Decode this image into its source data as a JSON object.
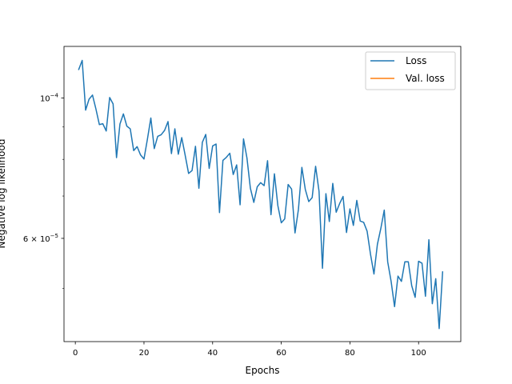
{
  "chart_data": {
    "type": "line",
    "xlabel": "Epochs",
    "ylabel": "Negative log likelihood",
    "yscale": "log",
    "xlim": [
      -3.3,
      112.3
    ],
    "ylim": [
      4.12e-05,
      0.0001207
    ],
    "grid": false,
    "legend_position": "top-right",
    "x_ticks": [
      0,
      20,
      40,
      60,
      80,
      100
    ],
    "x_tick_labels": [
      "0",
      "20",
      "40",
      "60",
      "80",
      "100"
    ],
    "y_ticks": [
      0.0001,
      6e-05
    ],
    "y_tick_labels": [
      {
        "mantissa": "",
        "base": "10",
        "exponent": "−4"
      },
      {
        "mantissa": "6 × ",
        "base": "10",
        "exponent": "−5"
      }
    ],
    "series": [
      {
        "name": "Loss",
        "color": "#1f77b4",
        "x": [
          1,
          2,
          3,
          4,
          5,
          6,
          7,
          8,
          9,
          10,
          11,
          12,
          13,
          14,
          15,
          16,
          17,
          18,
          19,
          20,
          21,
          22,
          23,
          24,
          25,
          26,
          27,
          28,
          29,
          30,
          31,
          32,
          33,
          34,
          35,
          36,
          37,
          38,
          39,
          40,
          41,
          42,
          43,
          44,
          45,
          46,
          47,
          48,
          49,
          50,
          51,
          52,
          53,
          54,
          55,
          56,
          57,
          58,
          59,
          60,
          61,
          62,
          63,
          64,
          65,
          66,
          67,
          68,
          69,
          70,
          71,
          72,
          73,
          74,
          75,
          76,
          77,
          78,
          79,
          80,
          81,
          82,
          83,
          84,
          85,
          86,
          87,
          88,
          89,
          90,
          91,
          92,
          93,
          94,
          95,
          96,
          97,
          98,
          99,
          100,
          101,
          102,
          103,
          104,
          105,
          106,
          107
        ],
        "y": [
          0.000111,
          0.0001147,
          9.57e-05,
          9.96e-05,
          0.0001011,
          9.61e-05,
          9.08e-05,
          9.11e-05,
          8.87e-05,
          0.0001002,
          9.79e-05,
          8.05e-05,
          9.1e-05,
          9.44e-05,
          9.03e-05,
          8.94e-05,
          8.26e-05,
          8.38e-05,
          8.13e-05,
          8.01e-05,
          8.61e-05,
          9.3e-05,
          8.32e-05,
          8.7e-05,
          8.75e-05,
          8.89e-05,
          9.18e-05,
          8.17e-05,
          8.94e-05,
          8.15e-05,
          8.66e-05,
          8.12e-05,
          7.6e-05,
          7.68e-05,
          8.39e-05,
          7.2e-05,
          8.51e-05,
          8.76e-05,
          7.74e-05,
          8.4e-05,
          8.46e-05,
          6.59e-05,
          7.97e-05,
          8.06e-05,
          8.18e-05,
          7.57e-05,
          7.84e-05,
          6.78e-05,
          8.62e-05,
          8.04e-05,
          7.2e-05,
          6.84e-05,
          7.24e-05,
          7.35e-05,
          7.27e-05,
          7.96e-05,
          6.54e-05,
          7.59e-05,
          6.76e-05,
          6.35e-05,
          6.44e-05,
          7.3e-05,
          7.18e-05,
          6.12e-05,
          6.67e-05,
          7.77e-05,
          7.17e-05,
          6.86e-05,
          6.96e-05,
          7.8e-05,
          7.12e-05,
          5.38e-05,
          7.06e-05,
          6.38e-05,
          7.33e-05,
          6.6e-05,
          6.81e-05,
          6.99e-05,
          6.13e-05,
          6.68e-05,
          6.29e-05,
          6.89e-05,
          6.39e-05,
          6.36e-05,
          6.16e-05,
          5.66e-05,
          5.27e-05,
          5.87e-05,
          6.22e-05,
          6.65e-05,
          5.51e-05,
          5.13e-05,
          4.68e-05,
          5.23e-05,
          5.13e-05,
          5.51e-05,
          5.51e-05,
          5.05e-05,
          4.84e-05,
          5.52e-05,
          5.48e-05,
          4.86e-05,
          5.97e-05,
          4.73e-05,
          5.18e-05,
          4.32e-05,
          5.31e-05
        ]
      },
      {
        "name": "Val. loss",
        "color": "#ff7f0e",
        "x": [],
        "y": []
      }
    ]
  }
}
